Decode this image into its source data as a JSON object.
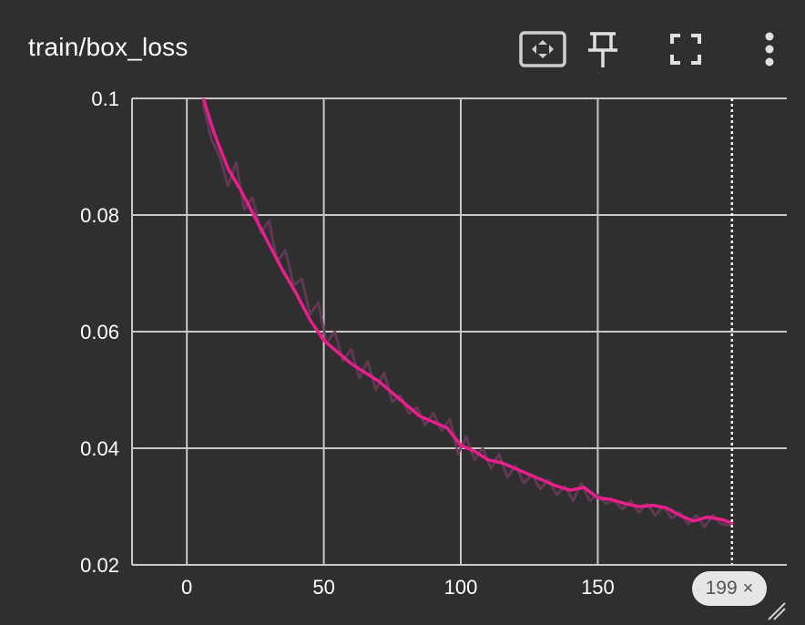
{
  "title": "train/box_loss",
  "toolbar": {
    "icons": [
      "fit-domain-icon",
      "pin-icon",
      "fullscreen-icon",
      "more-vert-icon"
    ]
  },
  "colors": {
    "background": "#2f2f2f",
    "grid": "#c8c8c8",
    "smoothed_line": "#e91e8c",
    "raw_line": "#6a3a58",
    "text": "#ffffff",
    "badge_bg": "#e6e6e6"
  },
  "badge": {
    "label": "199",
    "close": "×"
  },
  "chart_data": {
    "type": "line",
    "title": "train/box_loss",
    "xlabel": "",
    "ylabel": "",
    "xlim": [
      -20,
      219
    ],
    "ylim": [
      0.02,
      0.1
    ],
    "x_ticks": [
      0,
      50,
      100,
      150
    ],
    "y_ticks": [
      0.02,
      0.04,
      0.06,
      0.08,
      0.1
    ],
    "x_tick_labels": [
      "0",
      "50",
      "100",
      "150"
    ],
    "y_tick_labels": [
      "0.02",
      "0.04",
      "0.06",
      "0.08",
      "0.1"
    ],
    "cursor_step": 199,
    "grid": true,
    "series": [
      {
        "role": "smoothed",
        "x": [
          6,
          10,
          15,
          20,
          25,
          30,
          35,
          40,
          45,
          50,
          55,
          60,
          65,
          70,
          75,
          80,
          85,
          90,
          95,
          100,
          105,
          110,
          115,
          120,
          125,
          130,
          135,
          140,
          145,
          150,
          155,
          160,
          165,
          170,
          175,
          180,
          185,
          190,
          195,
          199
        ],
        "y": [
          0.1,
          0.094,
          0.088,
          0.084,
          0.0795,
          0.075,
          0.0705,
          0.0665,
          0.062,
          0.0585,
          0.0565,
          0.0545,
          0.053,
          0.0515,
          0.0495,
          0.0475,
          0.0455,
          0.0445,
          0.0435,
          0.0405,
          0.0395,
          0.038,
          0.0375,
          0.0365,
          0.0355,
          0.0345,
          0.0335,
          0.0328,
          0.0333,
          0.0315,
          0.0312,
          0.0305,
          0.03,
          0.0302,
          0.0298,
          0.0285,
          0.0275,
          0.0282,
          0.0278,
          0.0272
        ]
      },
      {
        "role": "raw",
        "x": [
          6,
          9,
          12,
          15,
          18,
          21,
          24,
          27,
          30,
          33,
          36,
          39,
          42,
          45,
          48,
          51,
          54,
          57,
          60,
          63,
          66,
          69,
          72,
          75,
          78,
          81,
          84,
          87,
          90,
          93,
          96,
          99,
          102,
          105,
          108,
          111,
          114,
          117,
          120,
          123,
          126,
          129,
          132,
          135,
          138,
          141,
          144,
          147,
          150,
          153,
          156,
          159,
          162,
          165,
          168,
          171,
          174,
          177,
          180,
          183,
          186,
          189,
          192,
          195,
          199
        ],
        "y": [
          0.099,
          0.093,
          0.09,
          0.085,
          0.089,
          0.081,
          0.083,
          0.077,
          0.079,
          0.072,
          0.074,
          0.068,
          0.069,
          0.063,
          0.065,
          0.058,
          0.06,
          0.055,
          0.057,
          0.052,
          0.055,
          0.05,
          0.053,
          0.048,
          0.049,
          0.046,
          0.047,
          0.044,
          0.046,
          0.043,
          0.045,
          0.039,
          0.042,
          0.038,
          0.04,
          0.0365,
          0.039,
          0.035,
          0.037,
          0.034,
          0.0355,
          0.033,
          0.0345,
          0.032,
          0.0335,
          0.031,
          0.034,
          0.031,
          0.032,
          0.0305,
          0.031,
          0.0295,
          0.031,
          0.029,
          0.0305,
          0.0285,
          0.03,
          0.028,
          0.029,
          0.027,
          0.0285,
          0.0265,
          0.0285,
          0.027,
          0.0268
        ]
      }
    ]
  }
}
